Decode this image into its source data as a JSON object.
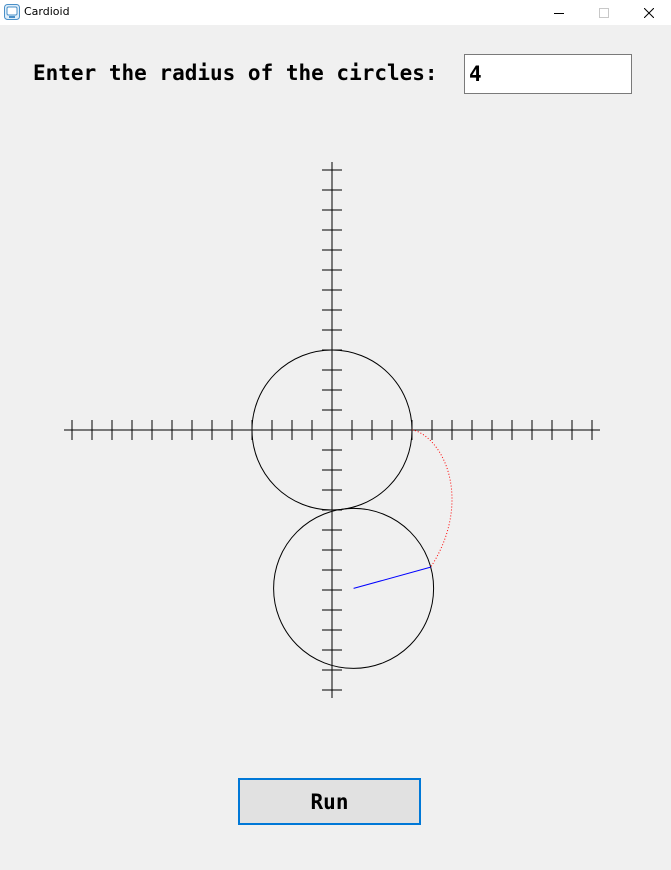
{
  "window": {
    "title": "Cardioid"
  },
  "form": {
    "radius_label": "Enter the radius of the circles:",
    "radius_value": "4",
    "run_label": "Run"
  },
  "plot": {
    "units_per_tick": 1,
    "x_range": [
      -13,
      13
    ],
    "y_range": [
      -13,
      13
    ],
    "fixed_circle": {
      "center": [
        0,
        0
      ],
      "radius": 4
    },
    "rolling_circle": {
      "center": [
        1.08,
        -7.92
      ],
      "radius": 4
    },
    "colors": {
      "axes": "#000000",
      "circles": "#000000",
      "trace": "#ff0000",
      "radius_line": "#0000ff"
    }
  }
}
